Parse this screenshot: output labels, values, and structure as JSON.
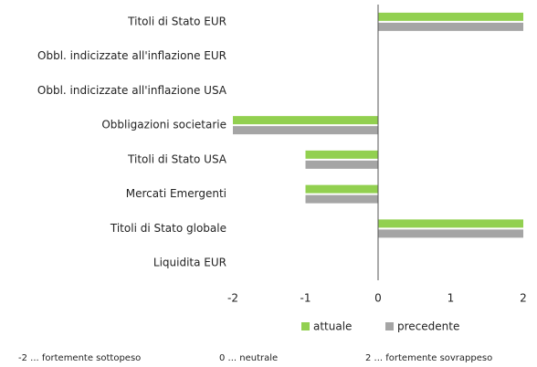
{
  "chart_data": {
    "type": "hbar",
    "categories": [
      "Titoli di Stato EUR",
      "Obbl. indicizzate all'inflazione EUR",
      "Obbl. indicizzate all'inflazione USA",
      "Obbligazioni societarie",
      "Titoli di Stato USA",
      "Mercati Emergenti",
      "Titoli di Stato globale",
      "Liquidita EUR"
    ],
    "series": [
      {
        "name": "attuale",
        "color": "#92d050",
        "values": [
          2,
          0,
          0,
          -2,
          -1,
          -1,
          2,
          0
        ]
      },
      {
        "name": "precedente",
        "color": "#a5a5a5",
        "values": [
          2,
          0,
          0,
          -2,
          -1,
          -1,
          2,
          0
        ]
      }
    ],
    "xlim": [
      -2,
      2
    ],
    "xticks": [
      -2,
      -1,
      0,
      1,
      2
    ],
    "grid": false,
    "legend": "bottom",
    "notes": [
      "-2 ... fortemente sottopeso",
      "0 ... neutrale",
      "2 ... fortemente sovrappeso"
    ]
  }
}
